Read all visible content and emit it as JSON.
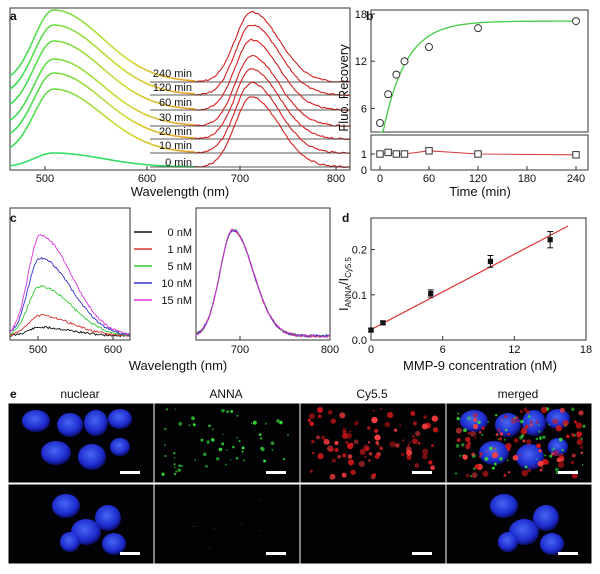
{
  "panel_labels": {
    "a": "a",
    "b": "b",
    "c": "c",
    "d": "d",
    "e": "e"
  },
  "chart_data": [
    {
      "panel": "a",
      "type": "line",
      "xlabel": "Wavelength (nm)",
      "xticks": [
        "500",
        "600",
        "700",
        "800"
      ],
      "xlim": [
        470,
        800
      ],
      "series_labels": [
        "240 min",
        "120 min",
        "60 min",
        "30 min",
        "20 min",
        "10 min",
        "0 min"
      ],
      "series_colors": [
        "#22e066",
        "#33e055",
        "#44e044",
        "#5ade3a",
        "#66dd33",
        "#88dd22",
        "#33dd66"
      ],
      "anna_peak_nm": 510,
      "cy55_peak_nm": 692,
      "colors": {
        "anna": "#33dd55",
        "cy55": "#d42020"
      }
    },
    {
      "panel": "b",
      "type": "line",
      "xlabel": "Time (min)",
      "ylabel": "Fluo. Recovery",
      "xlim": [
        0,
        250
      ],
      "xticks": [
        "0",
        "60",
        "120",
        "180",
        "240"
      ],
      "series": [
        {
          "marker": "circle",
          "color": "#44cc44",
          "x": [
            0,
            10,
            20,
            30,
            60,
            120,
            240
          ],
          "y": [
            1.0,
            7.8,
            10.3,
            12.0,
            13.8,
            16.2,
            17.1
          ]
        },
        {
          "marker": "square",
          "color": "#d44040",
          "x": [
            0,
            10,
            20,
            30,
            60,
            120,
            240
          ],
          "y": [
            1.0,
            1.1,
            1.0,
            1.0,
            1.2,
            1.0,
            0.95
          ]
        }
      ],
      "upper_yticks": [
        "6",
        "12",
        "18"
      ],
      "upper_ylim": [
        3,
        18
      ],
      "lower_yticks": [
        "0",
        "1"
      ],
      "lower_ylim": [
        0,
        2
      ]
    },
    {
      "panel": "c",
      "type": "line",
      "xlabel": "Wavelength (nm)",
      "xticks": [
        "500",
        "600",
        "700",
        "800"
      ],
      "legend": [
        "0 nM",
        "1 nM",
        "5 nM",
        "10 nM",
        "15 nM"
      ],
      "colors": [
        "#111111",
        "#dd3030",
        "#33cc33",
        "#3333cc",
        "#dd33dd"
      ],
      "anna_peak_heights": [
        0.08,
        0.19,
        0.46,
        0.72,
        0.93
      ],
      "anna_peak_nm": 510,
      "cy55_peak_nm": 695
    },
    {
      "panel": "d",
      "type": "scatter",
      "xlabel": "MMP-9 concentration (nM)",
      "ylabel_main": "I",
      "ylabel_sub1": "ANNA",
      "ylabel_sep": "/I",
      "ylabel_sub2": "Cy5.5",
      "x": [
        0,
        1,
        5,
        10,
        15
      ],
      "y": [
        0.022,
        0.038,
        0.103,
        0.174,
        0.222
      ],
      "yerr": [
        0.004,
        0.004,
        0.008,
        0.013,
        0.018
      ],
      "fit": {
        "slope": 0.0139,
        "intercept": 0.023,
        "x_range": [
          0,
          16.5
        ],
        "color": "#dd3333"
      },
      "xlim": [
        0,
        18
      ],
      "ylim": [
        0,
        0.27
      ],
      "xticks": [
        "0",
        "6",
        "12",
        "18"
      ],
      "yticks": [
        "0.0",
        "0.1",
        "0.2"
      ]
    }
  ],
  "micrographs": {
    "headers": [
      "nuclear",
      "ANNA",
      "Cy5.5",
      "merged"
    ],
    "header_colors": [
      "#111111",
      "#22aa22",
      "#dd2222",
      "#111111"
    ]
  }
}
